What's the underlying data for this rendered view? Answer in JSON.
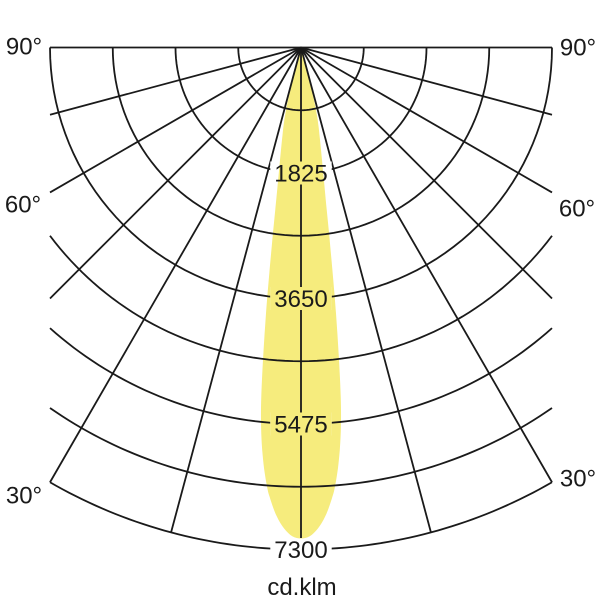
{
  "chart_data": {
    "type": "polar-photometric",
    "description": "Luminous intensity distribution curve (polar diagram), narrow symmetric downward beam",
    "unit_label": "cd.klm",
    "max_value": 7300,
    "ring_step_value": 912.5,
    "ring_values": [
      912.5,
      1825,
      2737.5,
      3650,
      4562.5,
      5475,
      6387.5,
      7300
    ],
    "labeled_ring_values": [
      1825,
      3650,
      5475,
      7300
    ],
    "ring_label_texts": [
      "1825",
      "3650",
      "5475",
      "7300"
    ],
    "angle_grid_step_deg": 15,
    "angle_grid_lines_deg": [
      -90,
      -75,
      -60,
      -45,
      -30,
      -15,
      0,
      15,
      30,
      45,
      60,
      75,
      90
    ],
    "angle_labels_left": [
      "90°",
      "60°",
      "30°"
    ],
    "angle_labels_right": [
      "90°",
      "60°",
      "30°"
    ],
    "angle_label_values_deg": [
      90,
      60,
      30
    ],
    "grid_color": "#1a1a1a",
    "beam_color": "#F6EC7D",
    "background_color": "#ffffff",
    "beam_peak_cd_per_klm": 7140,
    "beam_profile_cd_per_klm": [
      [
        0,
        7140
      ],
      [
        1,
        7110
      ],
      [
        2,
        7000
      ],
      [
        3,
        6820
      ],
      [
        4,
        6550
      ],
      [
        4.5,
        6370
      ],
      [
        5,
        6150
      ],
      [
        5.5,
        5880
      ],
      [
        6,
        5550
      ],
      [
        6.5,
        5100
      ],
      [
        7,
        4500
      ],
      [
        7.5,
        3900
      ],
      [
        8,
        3300
      ],
      [
        8.5,
        2800
      ],
      [
        9,
        2400
      ],
      [
        9.5,
        2100
      ],
      [
        10,
        1870
      ],
      [
        10.5,
        1680
      ],
      [
        11,
        1530
      ],
      [
        11.5,
        1400
      ],
      [
        12,
        1290
      ],
      [
        12.5,
        1180
      ],
      [
        13,
        1070
      ],
      [
        13.5,
        940
      ],
      [
        14,
        760
      ],
      [
        14.3,
        520
      ],
      [
        14.6,
        260
      ],
      [
        14.8,
        0
      ]
    ]
  }
}
